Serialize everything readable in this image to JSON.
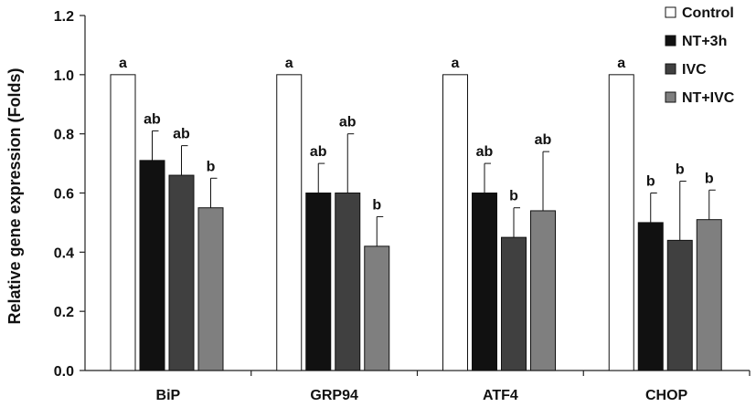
{
  "chart_data": {
    "type": "bar",
    "categories": [
      "BiP",
      "GRP94",
      "ATF4",
      "CHOP"
    ],
    "ylabel": "Relative gene expression  (Folds)",
    "ylim": [
      0,
      1.2
    ],
    "yticks": [
      "0.0",
      "0.2",
      "0.4",
      "0.6",
      "0.8",
      "1.0",
      "1.2"
    ],
    "grid": false,
    "legend_position": "top-right",
    "series": [
      {
        "name": "Control",
        "color": "#ffffff",
        "values": [
          1.0,
          1.0,
          1.0,
          1.0
        ],
        "errors": [
          0,
          0,
          0,
          0
        ],
        "sig": [
          "a",
          "a",
          "a",
          "a"
        ]
      },
      {
        "name": "NT+3h",
        "color": "#111111",
        "values": [
          0.71,
          0.6,
          0.6,
          0.5
        ],
        "errors": [
          0.1,
          0.1,
          0.1,
          0.1
        ],
        "sig": [
          "ab",
          "ab",
          "ab",
          "b"
        ]
      },
      {
        "name": "IVC",
        "color": "#404040",
        "values": [
          0.66,
          0.6,
          0.45,
          0.44
        ],
        "errors": [
          0.1,
          0.2,
          0.1,
          0.2
        ],
        "sig": [
          "ab",
          "ab",
          "b",
          "b"
        ]
      },
      {
        "name": "NT+IVC",
        "color": "#7f7f7f",
        "values": [
          0.55,
          0.42,
          0.54,
          0.51
        ],
        "errors": [
          0.1,
          0.1,
          0.2,
          0.1
        ],
        "sig": [
          "b",
          "b",
          "ab",
          "b"
        ]
      }
    ]
  }
}
